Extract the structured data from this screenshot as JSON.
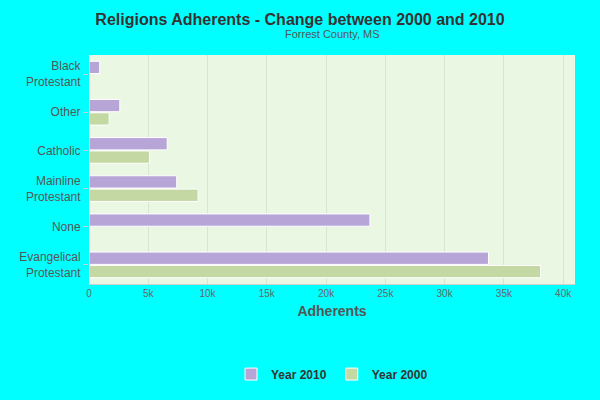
{
  "chart_data": {
    "type": "bar",
    "orientation": "horizontal",
    "title": "Religions Adherents - Change between 2000 and 2010",
    "subtitle": "Forrest County, MS",
    "x_label": "Adherents",
    "categories": [
      "Black Protestant",
      "Other",
      "Catholic",
      "Mainline Protestant",
      "None",
      "Evangelical Protestant"
    ],
    "series": [
      {
        "name": "Year 2010",
        "color": "#b8a5d8",
        "values": [
          900,
          2600,
          6600,
          7400,
          23700,
          33700
        ]
      },
      {
        "name": "Year 2000",
        "color": "#c4d8a3",
        "values": [
          null,
          1700,
          5100,
          9200,
          null,
          38100
        ]
      }
    ],
    "xlim": [
      0,
      41000
    ],
    "xticks": [
      0,
      {
        "value": 5000,
        "label": "5k"
      },
      {
        "value": 10000,
        "label": "10k"
      },
      {
        "value": 15000,
        "label": "15k"
      },
      {
        "value": 20000,
        "label": "20k"
      },
      {
        "value": 25000,
        "label": "25k"
      },
      {
        "value": 30000,
        "label": "30k"
      },
      {
        "value": 35000,
        "label": "35k"
      },
      {
        "value": 40000,
        "label": "40k"
      }
    ],
    "grid": true,
    "legend": "bottom"
  }
}
